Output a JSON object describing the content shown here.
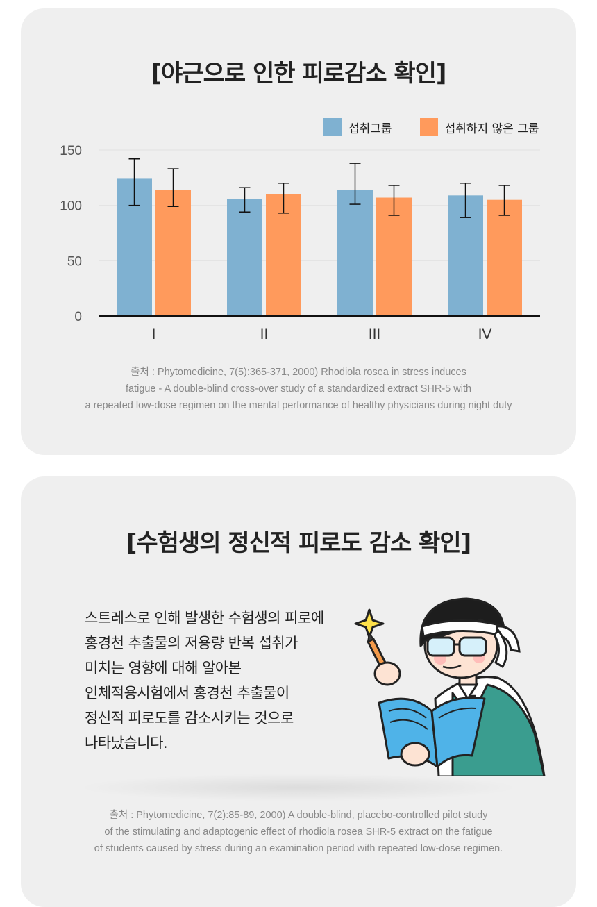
{
  "section1": {
    "title": "[야근으로 인한 피로감소 확인]",
    "legend": [
      {
        "label": "섭취그룹",
        "color": "#7fb1d1"
      },
      {
        "label": "섭취하지 않은 그룹",
        "color": "#ff9a5c"
      }
    ],
    "source_lines": [
      "출처 : Phytomedicine, 7(5):365-371, 2000) Rhodiola rosea in stress induces",
      "fatigue -  A double-blind cross-over study of a standardized extract SHR-5 with",
      "a repeated low-dose regimen on the mental performance of healthy physicians during night duty"
    ]
  },
  "chart_data": {
    "type": "bar",
    "title": "[야근으로 인한 피로감소 확인]",
    "categories": [
      "I",
      "II",
      "III",
      "IV"
    ],
    "ylim": [
      0,
      150
    ],
    "yticks": [
      0,
      50,
      100,
      150
    ],
    "grid": true,
    "legend_position": "top-right",
    "series": [
      {
        "name": "섭취그룹",
        "color": "#7fb1d1",
        "values": [
          124,
          106,
          114,
          109
        ],
        "error": [
          [
            100,
            142
          ],
          [
            94,
            116
          ],
          [
            101,
            138
          ],
          [
            89,
            120
          ]
        ]
      },
      {
        "name": "섭취하지 않은 그룹",
        "color": "#ff9a5c",
        "values": [
          114,
          110,
          107,
          105
        ],
        "error": [
          [
            99,
            133
          ],
          [
            93,
            120
          ],
          [
            91,
            118
          ],
          [
            91,
            118
          ]
        ]
      }
    ]
  },
  "section2": {
    "title": "[수험생의 정신적 피로도 감소 확인]",
    "body_lines": [
      "스트레스로 인해 발생한 수험생의 피로에",
      "홍경천 추출물의 저용량 반복 섭취가",
      "미치는 영향에 대해 알아본",
      "인체적용시험에서 홍경천 추출물이",
      "정신적 피로도를 감소시키는 것으로",
      "나타났습니다."
    ],
    "source_lines": [
      "출처 : Phytomedicine, 7(2):85-89, 2000) A double-blind, placebo-controlled pilot study",
      "of the stimulating and adaptogenic effect of rhodiola rosea SHR-5 extract on the fatigue",
      "of students caused by stress during an examination period with repeated low-dose regimen."
    ]
  }
}
